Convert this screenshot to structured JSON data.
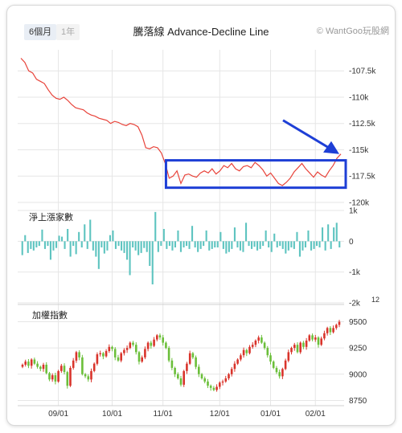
{
  "header": {
    "tab_6m": "6個月",
    "tab_1y": "1年",
    "title": "騰落線 Advance-Decline Line",
    "brand": "© WantGoo玩股網"
  },
  "colors": {
    "line": "#e8433a",
    "bar": "#5ec4c0",
    "candle_up": "#d9342b",
    "candle_down": "#6bbf3a",
    "highlight": "#1e3fd6",
    "grid": "#e6e6e6"
  },
  "chart_data": [
    {
      "type": "line",
      "title": "",
      "yticks": [
        "-107.5k",
        "-110k",
        "-112.5k",
        "-115k",
        "-117.5k",
        "-120k"
      ],
      "ytick_values": [
        -107500,
        -110000,
        -112500,
        -115000,
        -117500,
        -120000
      ],
      "ylim": [
        -120000,
        -105500
      ],
      "values": [
        -106300,
        -106700,
        -107500,
        -107700,
        -108300,
        -108500,
        -108700,
        -109300,
        -109800,
        -110100,
        -110200,
        -110000,
        -110300,
        -110700,
        -111000,
        -111100,
        -111200,
        -111500,
        -111700,
        -111800,
        -112000,
        -112100,
        -112200,
        -112500,
        -112300,
        -112400,
        -112600,
        -112700,
        -112500,
        -112600,
        -112800,
        -113600,
        -114800,
        -114900,
        -114700,
        -114800,
        -115300,
        -116300,
        -117700,
        -117500,
        -117000,
        -118200,
        -117400,
        -117300,
        -117500,
        -117600,
        -117200,
        -117000,
        -117200,
        -116800,
        -117300,
        -117000,
        -116500,
        -116700,
        -116300,
        -116800,
        -117000,
        -116600,
        -116500,
        -116700,
        -116200,
        -116500,
        -116900,
        -117500,
        -117200,
        -117700,
        -118200,
        -118400,
        -118100,
        -117700,
        -117100,
        -116700,
        -116300,
        -116800,
        -117200,
        -117600,
        -117100,
        -117400,
        -117600,
        -117000,
        -116500,
        -115800,
        -115400
      ],
      "annotations": {
        "box": {
          "from_index": 38,
          "to_index": 82,
          "y_top": -116000,
          "y_bottom": -118600
        },
        "arrow": "top-right pointing to latest value"
      }
    },
    {
      "type": "bar",
      "title": "淨上漲家數",
      "yticks": [
        "1k",
        "0",
        "-1k",
        "-2k"
      ],
      "ytick_values": [
        1000,
        0,
        -1000,
        -2000
      ],
      "ylim": [
        -2000,
        1000
      ],
      "values": [
        -450,
        200,
        -380,
        -250,
        -300,
        -200,
        -150,
        380,
        -250,
        -150,
        -600,
        -300,
        -220,
        180,
        150,
        -250,
        400,
        -500,
        -150,
        -420,
        300,
        -200,
        550,
        -250,
        700,
        -300,
        -500,
        -900,
        -200,
        -400,
        -300,
        200,
        350,
        -250,
        -150,
        -300,
        -380,
        -600,
        -1100,
        -200,
        -300,
        -450,
        -380,
        -220,
        -350,
        -800,
        -1400,
        950,
        -350,
        -150,
        400,
        -250,
        -150,
        -300,
        -200,
        350,
        -350,
        -200,
        -150,
        -250,
        500,
        -200,
        -350,
        -250,
        -150,
        350,
        -300,
        -250,
        -200,
        -200,
        300,
        -250,
        -400,
        -350,
        -250,
        450,
        -200,
        -300,
        -350,
        600,
        -150,
        -250,
        -180,
        -300,
        -250,
        -150,
        350,
        -200,
        -350,
        250,
        -200,
        -150,
        -250,
        -400,
        -300,
        -200,
        -250,
        300,
        -500,
        -300,
        -200,
        350,
        -300,
        -250,
        -150,
        -200,
        450,
        -300,
        550,
        -250,
        450,
        600,
        -200
      ],
      "extra_label": "12"
    },
    {
      "type": "candlestick",
      "title": "加權指數",
      "yticks": [
        "9500",
        "9250",
        "9000",
        "8750"
      ],
      "ytick_values": [
        9500,
        9250,
        9000,
        8750
      ],
      "ylim": [
        8700,
        9580
      ],
      "closes": [
        9090,
        9120,
        9080,
        9140,
        9100,
        9070,
        9050,
        9090,
        9010,
        8950,
        8990,
        8930,
        9030,
        9080,
        9020,
        8890,
        9060,
        9130,
        9210,
        9160,
        9000,
        8980,
        8950,
        9030,
        9100,
        9190,
        9200,
        9170,
        9220,
        9260,
        9240,
        9160,
        9130,
        9200,
        9230,
        9250,
        9300,
        9280,
        9210,
        9120,
        9160,
        9240,
        9300,
        9270,
        9330,
        9370,
        9350,
        9300,
        9250,
        9130,
        9060,
        9000,
        8960,
        8900,
        9030,
        9100,
        9200,
        9160,
        9070,
        9000,
        8960,
        8930,
        8890,
        8870,
        8850,
        8880,
        8920,
        8930,
        8960,
        9000,
        9050,
        9100,
        9140,
        9180,
        9230,
        9200,
        9260,
        9280,
        9320,
        9350,
        9300,
        9250,
        9180,
        9120,
        9060,
        9020,
        8980,
        9050,
        9130,
        9210,
        9250,
        9280,
        9210,
        9300,
        9260,
        9320,
        9370,
        9330,
        9350,
        9280,
        9340,
        9390,
        9440,
        9400,
        9440,
        9470,
        9500
      ],
      "xticks": [
        "09/01",
        "10/01",
        "11/01",
        "12/01",
        "01/01",
        "02/01"
      ],
      "xtick_index": [
        12,
        30,
        47,
        66,
        83,
        98
      ]
    }
  ]
}
